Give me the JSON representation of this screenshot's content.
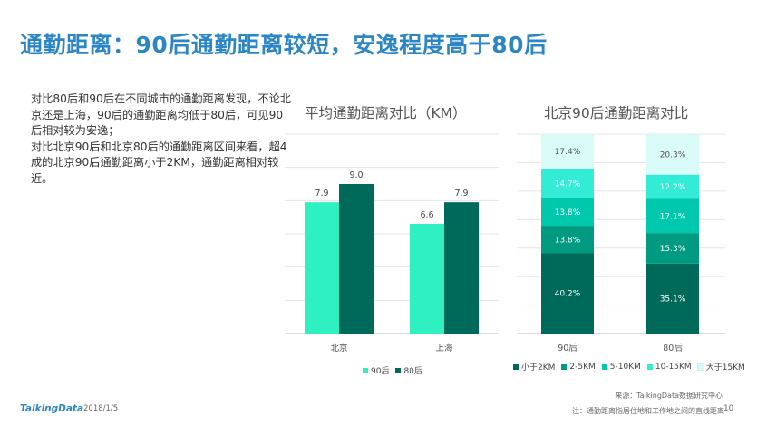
{
  "slide": {
    "title": "通勤距离：90后通勤距离较短，安逸程度高于80后",
    "paragraphs": [
      "对比80后和90后在不同城市的通勤距离发现，不论北京还是上海，90后的通勤距离均低于80后，可见90后相对较为安逸；",
      "对比北京90后和北京80后的通勤距离区间来看，超4成的北京90后通勤距离小于2KM，通勤距离相对较近。"
    ],
    "source": "来源：TalkingData数据研究中心",
    "footnote": "注：通勤距离指居住地和工作地之间的直线距离",
    "brand": "TalkingData",
    "date": "2018/1/5",
    "page_number": "10"
  },
  "colors": {
    "title": "#2c86c6",
    "series_90": "#2ef0c0",
    "series_80": "#006a5a",
    "seg_lt2": "#006a5a",
    "seg_2_5": "#009a80",
    "seg_5_10": "#00c8ad",
    "seg_10_15": "#33ecd6",
    "seg_gt15": "#d9fbf8"
  },
  "chart_data": [
    {
      "type": "bar",
      "title": "平均通勤距离对比（KM）",
      "categories": [
        "北京",
        "上海"
      ],
      "series": [
        {
          "name": "90后",
          "values": [
            7.9,
            6.6
          ]
        },
        {
          "name": "80后",
          "values": [
            9.0,
            7.9
          ]
        }
      ],
      "ylim": [
        0,
        12
      ],
      "grid": true,
      "legend": "bottom"
    },
    {
      "type": "bar",
      "stacked": true,
      "normalized": true,
      "title": "北京90后通勤距离对比",
      "categories": [
        "90后",
        "80后"
      ],
      "series": [
        {
          "name": "小于2KM",
          "values": [
            40.2,
            35.1
          ]
        },
        {
          "name": "2-5KM",
          "values": [
            13.8,
            15.3
          ]
        },
        {
          "name": "5-10KM",
          "values": [
            13.8,
            17.1
          ]
        },
        {
          "name": "10-15KM",
          "values": [
            14.7,
            12.2
          ]
        },
        {
          "name": "大于15KM",
          "values": [
            17.4,
            20.3
          ]
        }
      ],
      "ylim": [
        0,
        100
      ],
      "grid": true,
      "legend": "bottom"
    }
  ]
}
